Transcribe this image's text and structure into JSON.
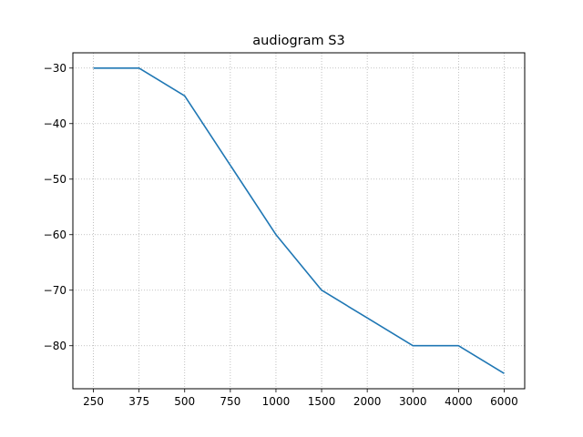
{
  "chart_data": {
    "type": "line",
    "title": "audiogram S3",
    "xlabel": "",
    "ylabel": "",
    "categories": [
      "250",
      "375",
      "500",
      "750",
      "1000",
      "1500",
      "2000",
      "3000",
      "4000",
      "6000"
    ],
    "series": [
      {
        "values": [
          -30,
          -30,
          -35,
          -47.5,
          -60,
          -70,
          -75,
          -80,
          -80,
          -85
        ],
        "color": "#1f77b4"
      }
    ],
    "ylim": [
      -87.75,
      -27.25
    ],
    "yticks": [
      -30,
      -40,
      -50,
      -60,
      -70,
      -80
    ],
    "ytick_labels": [
      "−30",
      "−40",
      "−50",
      "−60",
      "−70",
      "−80"
    ],
    "grid": true,
    "grid_style": "dotted"
  }
}
